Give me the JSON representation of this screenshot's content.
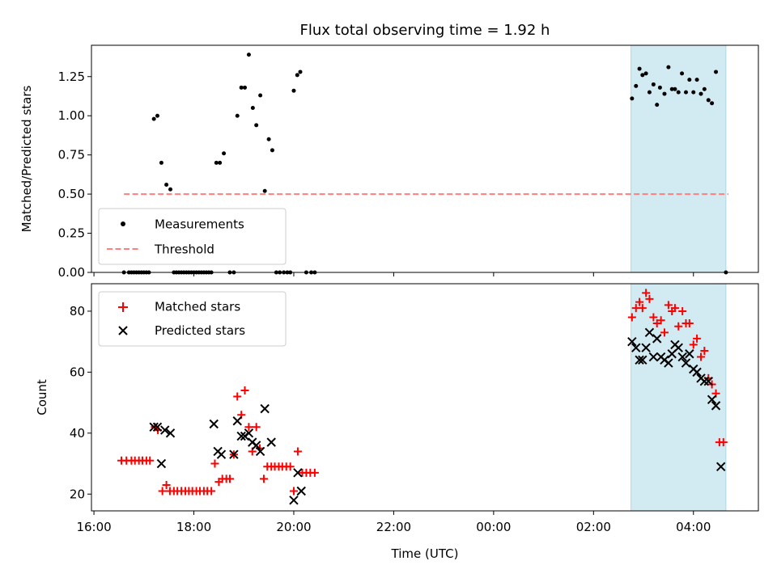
{
  "title": "Flux total observing time = 1.92 h",
  "colors": {
    "measurement": "#000000",
    "threshold": "#ff7f7f",
    "matched": "#ff0000",
    "predicted": "#000000",
    "window": "#add8e6"
  },
  "chart_data": [
    {
      "type": "scatter",
      "ylabel": "Matched/Predicted stars",
      "xlim": [
        15.95,
        29.3
      ],
      "ylim": [
        0.0,
        1.45
      ],
      "yticks": [
        0.0,
        0.25,
        0.5,
        0.75,
        1.0,
        1.25
      ],
      "ytick_labels": [
        "0.00",
        "0.25",
        "0.50",
        "0.75",
        "1.00",
        "1.25"
      ],
      "legend": {
        "position": "lower-left",
        "entries": [
          "Measurements",
          "Threshold"
        ]
      },
      "highlight_span": [
        26.75,
        28.65
      ],
      "threshold": {
        "name": "Threshold",
        "y": 0.5,
        "x": [
          16.6,
          28.7
        ]
      },
      "series": [
        {
          "name": "Measurements",
          "points": [
            [
              16.6,
              0
            ],
            [
              16.7,
              0
            ],
            [
              16.75,
              0
            ],
            [
              16.8,
              0
            ],
            [
              16.85,
              0
            ],
            [
              16.9,
              0
            ],
            [
              16.95,
              0
            ],
            [
              17.0,
              0
            ],
            [
              17.05,
              0
            ],
            [
              17.1,
              0
            ],
            [
              17.2,
              0.98
            ],
            [
              17.27,
              1.0
            ],
            [
              17.35,
              0.7
            ],
            [
              17.45,
              0.56
            ],
            [
              17.53,
              0.53
            ],
            [
              17.6,
              0
            ],
            [
              17.65,
              0
            ],
            [
              17.7,
              0
            ],
            [
              17.75,
              0
            ],
            [
              17.8,
              0
            ],
            [
              17.85,
              0
            ],
            [
              17.9,
              0
            ],
            [
              17.95,
              0
            ],
            [
              18.0,
              0
            ],
            [
              18.05,
              0
            ],
            [
              18.1,
              0
            ],
            [
              18.15,
              0
            ],
            [
              18.2,
              0
            ],
            [
              18.25,
              0
            ],
            [
              18.3,
              0
            ],
            [
              18.35,
              0
            ],
            [
              18.45,
              0.7
            ],
            [
              18.52,
              0.7
            ],
            [
              18.6,
              0.76
            ],
            [
              18.72,
              0
            ],
            [
              18.8,
              0
            ],
            [
              18.87,
              1.0
            ],
            [
              18.95,
              1.18
            ],
            [
              19.02,
              1.18
            ],
            [
              19.1,
              1.39
            ],
            [
              19.18,
              1.05
            ],
            [
              19.25,
              0.94
            ],
            [
              19.33,
              1.13
            ],
            [
              19.42,
              0.52
            ],
            [
              19.5,
              0.85
            ],
            [
              19.57,
              0.78
            ],
            [
              19.65,
              0
            ],
            [
              19.72,
              0
            ],
            [
              19.8,
              0
            ],
            [
              19.87,
              0
            ],
            [
              19.93,
              0
            ],
            [
              20.0,
              1.16
            ],
            [
              20.07,
              1.26
            ],
            [
              20.13,
              1.28
            ],
            [
              20.25,
              0
            ],
            [
              20.35,
              0
            ],
            [
              20.42,
              0
            ],
            [
              26.77,
              1.11
            ],
            [
              26.85,
              1.19
            ],
            [
              26.92,
              1.3
            ],
            [
              26.98,
              1.26
            ],
            [
              27.05,
              1.27
            ],
            [
              27.12,
              1.15
            ],
            [
              27.2,
              1.2
            ],
            [
              27.27,
              1.07
            ],
            [
              27.33,
              1.18
            ],
            [
              27.42,
              1.14
            ],
            [
              27.5,
              1.31
            ],
            [
              27.57,
              1.17
            ],
            [
              27.63,
              1.17
            ],
            [
              27.7,
              1.15
            ],
            [
              27.77,
              1.27
            ],
            [
              27.85,
              1.15
            ],
            [
              27.92,
              1.23
            ],
            [
              28.0,
              1.15
            ],
            [
              28.07,
              1.23
            ],
            [
              28.15,
              1.14
            ],
            [
              28.22,
              1.17
            ],
            [
              28.3,
              1.1
            ],
            [
              28.37,
              1.08
            ],
            [
              28.45,
              1.28
            ],
            [
              28.65,
              0
            ]
          ]
        }
      ]
    },
    {
      "type": "scatter",
      "xlabel": "Time (UTC)",
      "ylabel": "Count",
      "xlim": [
        15.95,
        29.3
      ],
      "ylim": [
        14.5,
        89
      ],
      "yticks": [
        20,
        40,
        60,
        80
      ],
      "ytick_labels": [
        "20",
        "40",
        "60",
        "80"
      ],
      "xticks": [
        16,
        18,
        20,
        22,
        24,
        26,
        28
      ],
      "xtick_labels": [
        "16:00",
        "18:00",
        "20:00",
        "22:00",
        "00:00",
        "02:00",
        "04:00"
      ],
      "legend": {
        "position": "top-left",
        "entries": [
          "Matched stars",
          "Predicted stars"
        ]
      },
      "highlight_span": [
        26.75,
        28.65
      ],
      "series": [
        {
          "name": "Matched stars",
          "marker": "plus",
          "points": [
            [
              16.55,
              31
            ],
            [
              16.65,
              31
            ],
            [
              16.75,
              31
            ],
            [
              16.82,
              31
            ],
            [
              16.9,
              31
            ],
            [
              16.97,
              31
            ],
            [
              17.05,
              31
            ],
            [
              17.12,
              31
            ],
            [
              17.22,
              42
            ],
            [
              17.28,
              41
            ],
            [
              17.37,
              21
            ],
            [
              17.45,
              23
            ],
            [
              17.52,
              21
            ],
            [
              17.6,
              21
            ],
            [
              17.67,
              21
            ],
            [
              17.75,
              21
            ],
            [
              17.83,
              21
            ],
            [
              17.9,
              21
            ],
            [
              17.97,
              21
            ],
            [
              18.05,
              21
            ],
            [
              18.12,
              21
            ],
            [
              18.2,
              21
            ],
            [
              18.27,
              21
            ],
            [
              18.35,
              21
            ],
            [
              18.42,
              30
            ],
            [
              18.5,
              24
            ],
            [
              18.57,
              25
            ],
            [
              18.65,
              25
            ],
            [
              18.72,
              25
            ],
            [
              18.8,
              33
            ],
            [
              18.87,
              52
            ],
            [
              18.95,
              46
            ],
            [
              19.02,
              54
            ],
            [
              19.1,
              42
            ],
            [
              19.17,
              34
            ],
            [
              19.25,
              42
            ],
            [
              19.32,
              35
            ],
            [
              19.4,
              25
            ],
            [
              19.47,
              29
            ],
            [
              19.55,
              29
            ],
            [
              19.62,
              29
            ],
            [
              19.7,
              29
            ],
            [
              19.77,
              29
            ],
            [
              19.85,
              29
            ],
            [
              19.93,
              29
            ],
            [
              20.0,
              21
            ],
            [
              20.08,
              34
            ],
            [
              20.17,
              27
            ],
            [
              20.25,
              27
            ],
            [
              20.33,
              27
            ],
            [
              20.42,
              27
            ],
            [
              26.77,
              78
            ],
            [
              26.85,
              81
            ],
            [
              26.92,
              83
            ],
            [
              26.98,
              81
            ],
            [
              27.05,
              86
            ],
            [
              27.12,
              84
            ],
            [
              27.2,
              78
            ],
            [
              27.27,
              76
            ],
            [
              27.35,
              77
            ],
            [
              27.42,
              73
            ],
            [
              27.5,
              82
            ],
            [
              27.57,
              80
            ],
            [
              27.63,
              81
            ],
            [
              27.7,
              75
            ],
            [
              27.78,
              80
            ],
            [
              27.85,
              76
            ],
            [
              27.92,
              76
            ],
            [
              28.0,
              69
            ],
            [
              28.07,
              71
            ],
            [
              28.15,
              65
            ],
            [
              28.22,
              67
            ],
            [
              28.3,
              58
            ],
            [
              28.37,
              56
            ],
            [
              28.45,
              53
            ],
            [
              28.52,
              37
            ],
            [
              28.6,
              37
            ]
          ]
        },
        {
          "name": "Predicted stars",
          "marker": "x",
          "points": [
            [
              17.2,
              42
            ],
            [
              17.27,
              42
            ],
            [
              17.35,
              30
            ],
            [
              17.42,
              41
            ],
            [
              17.53,
              40
            ],
            [
              18.4,
              43
            ],
            [
              18.48,
              34
            ],
            [
              18.55,
              33
            ],
            [
              18.8,
              33
            ],
            [
              18.87,
              44
            ],
            [
              18.95,
              39
            ],
            [
              19.02,
              39
            ],
            [
              19.1,
              40
            ],
            [
              19.17,
              37
            ],
            [
              19.25,
              36
            ],
            [
              19.33,
              34
            ],
            [
              19.42,
              48
            ],
            [
              19.55,
              37
            ],
            [
              20.0,
              18
            ],
            [
              20.08,
              27
            ],
            [
              20.15,
              21
            ],
            [
              26.77,
              70
            ],
            [
              26.85,
              68
            ],
            [
              26.92,
              64
            ],
            [
              26.98,
              64
            ],
            [
              27.05,
              68
            ],
            [
              27.12,
              73
            ],
            [
              27.2,
              65
            ],
            [
              27.27,
              71
            ],
            [
              27.35,
              65
            ],
            [
              27.42,
              64
            ],
            [
              27.5,
              63
            ],
            [
              27.57,
              66
            ],
            [
              27.63,
              69
            ],
            [
              27.7,
              68
            ],
            [
              27.78,
              65
            ],
            [
              27.85,
              63
            ],
            [
              27.92,
              66
            ],
            [
              28.0,
              61
            ],
            [
              28.07,
              60
            ],
            [
              28.15,
              58
            ],
            [
              28.22,
              57
            ],
            [
              28.3,
              57
            ],
            [
              28.37,
              51
            ],
            [
              28.45,
              49
            ],
            [
              28.55,
              29
            ]
          ]
        }
      ]
    }
  ]
}
